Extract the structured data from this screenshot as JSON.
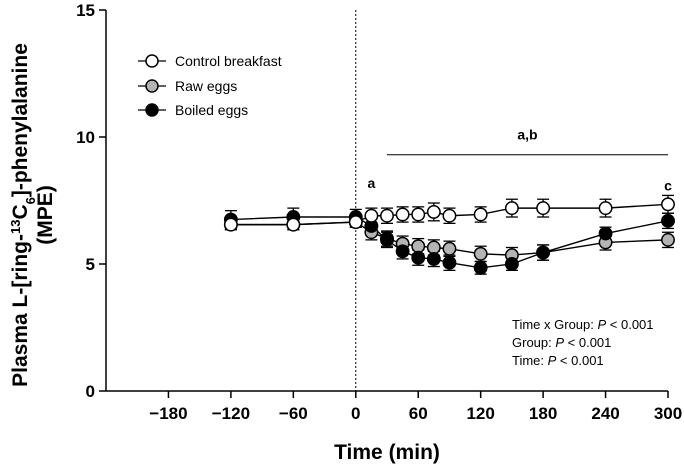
{
  "chart_data": {
    "type": "line",
    "title": "",
    "xlabel": "Time (min)",
    "ylabel_line1_pre": "Plasma L-[ring-",
    "ylabel_line1_sup": "13",
    "ylabel_line1_mid": "C",
    "ylabel_line1_sub": "6",
    "ylabel_line1_post": "]-phenylalanine",
    "ylabel_line2": "(MPE)",
    "xlim": [
      -240,
      300
    ],
    "ylim": [
      0,
      15
    ],
    "xticks": [
      -180,
      -120,
      -60,
      0,
      60,
      120,
      180,
      240,
      300
    ],
    "xtick_labels": [
      "−180",
      "−120",
      "−60",
      "0",
      "60",
      "120",
      "180",
      "240",
      "300"
    ],
    "yticks": [
      0,
      5,
      10,
      15
    ],
    "ytick_labels": [
      "0",
      "5",
      "10",
      "15"
    ],
    "reference_line_x": 0,
    "series": [
      {
        "name": "Control breakfast",
        "marker": "open-circle",
        "fill": "#ffffff",
        "x": [
          -120,
          -60,
          0,
          15,
          30,
          45,
          60,
          75,
          90,
          120,
          150,
          180,
          240,
          300
        ],
        "y": [
          6.55,
          6.55,
          6.65,
          6.9,
          6.9,
          6.95,
          6.95,
          7.05,
          6.9,
          6.95,
          7.2,
          7.2,
          7.2,
          7.35
        ],
        "err": [
          0.2,
          0.2,
          0.2,
          0.3,
          0.3,
          0.3,
          0.3,
          0.35,
          0.3,
          0.3,
          0.35,
          0.35,
          0.35,
          0.35
        ]
      },
      {
        "name": "Raw eggs",
        "marker": "grey-circle",
        "fill": "#b4b4b4",
        "x": [
          -120,
          -60,
          0,
          15,
          30,
          45,
          60,
          75,
          90,
          120,
          150,
          180,
          240,
          300
        ],
        "y": [
          6.55,
          6.55,
          6.65,
          6.25,
          6.0,
          5.8,
          5.7,
          5.65,
          5.6,
          5.4,
          5.35,
          5.45,
          5.85,
          5.95
        ],
        "err": [
          0.2,
          0.2,
          0.2,
          0.3,
          0.3,
          0.3,
          0.3,
          0.3,
          0.3,
          0.3,
          0.3,
          0.3,
          0.3,
          0.3
        ]
      },
      {
        "name": "Boiled eggs",
        "marker": "filled-circle",
        "fill": "#000000",
        "x": [
          -120,
          -60,
          0,
          15,
          30,
          45,
          60,
          75,
          90,
          120,
          150,
          180,
          240,
          300
        ],
        "y": [
          6.75,
          6.85,
          6.85,
          6.5,
          5.95,
          5.5,
          5.25,
          5.2,
          5.05,
          4.85,
          5.0,
          5.45,
          6.2,
          6.7
        ],
        "err": [
          0.35,
          0.35,
          0.3,
          0.3,
          0.3,
          0.3,
          0.3,
          0.3,
          0.3,
          0.25,
          0.25,
          0.3,
          0.25,
          0.3
        ]
      }
    ],
    "annotations": {
      "a_label": "a",
      "a_x": 15,
      "a_y": 8.0,
      "ab_label": "a,b",
      "ab_x": 165,
      "ab_y": 9.9,
      "ab_bar_x_start": 30,
      "ab_bar_x_end": 300,
      "ab_bar_y": 9.3,
      "c_label": "c",
      "c_x": 300,
      "c_y": 7.9
    },
    "stats": {
      "line1_pre": "Time x Group: ",
      "line1_p": "P",
      "line1_post": " < 0.001",
      "line2_pre": "Group: ",
      "line2_p": "P",
      "line2_post": " < 0.001",
      "line3_pre": "Time: ",
      "line3_p": "P",
      "line3_post": " < 0.001"
    },
    "legend": [
      "Control breakfast",
      "Raw eggs",
      "Boiled eggs"
    ],
    "legend_position": "top-left"
  }
}
